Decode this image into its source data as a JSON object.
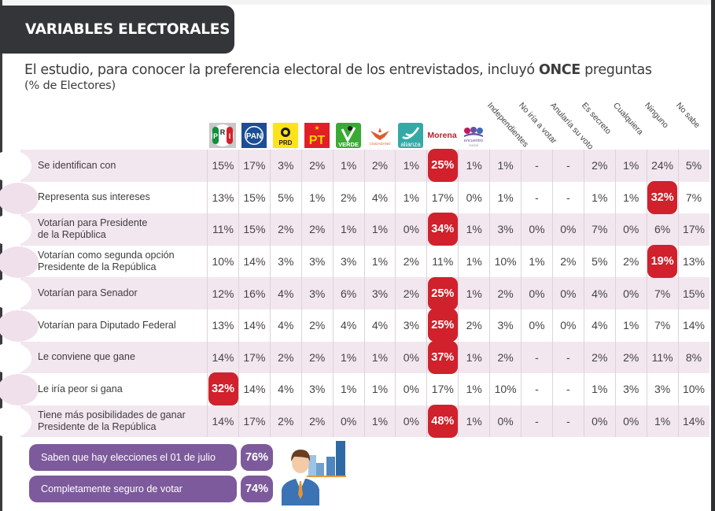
{
  "header": {
    "title": "VARIABLES ELECTORALES"
  },
  "intro": {
    "text_before": "El estudio, para conocer la preferencia electoral de los entrevistados, incluyó ",
    "text_bold": "ONCE",
    "text_after": " preguntas",
    "subtitle": "(% de Electores)"
  },
  "columns": [
    {
      "key": "pri",
      "type": "logo",
      "icon": "pri-logo-icon",
      "label": "PRI"
    },
    {
      "key": "pan",
      "type": "logo",
      "icon": "pan-logo-icon",
      "label": "PAN"
    },
    {
      "key": "prd",
      "type": "logo",
      "icon": "prd-logo-icon",
      "label": "PRD"
    },
    {
      "key": "pt",
      "type": "logo",
      "icon": "pt-logo-icon",
      "label": "PT"
    },
    {
      "key": "verde",
      "type": "logo",
      "icon": "verde-logo-icon",
      "label": "VERDE"
    },
    {
      "key": "mc",
      "type": "logo",
      "icon": "movimiento-ciudadano-logo-icon",
      "label": "CIUDADANO"
    },
    {
      "key": "alianza",
      "type": "logo",
      "icon": "nueva-alianza-logo-icon",
      "label": "alianza"
    },
    {
      "key": "morena",
      "type": "logo",
      "icon": "morena-logo-icon",
      "label": "Morena"
    },
    {
      "key": "pes",
      "type": "logo",
      "icon": "encuentro-social-logo-icon",
      "label": "encuentro social"
    },
    {
      "key": "independientes",
      "type": "text",
      "label": "Independientes"
    },
    {
      "key": "no_iria",
      "type": "text",
      "label": "No iría a votar"
    },
    {
      "key": "anularia",
      "type": "text",
      "label": "Anularía su voto"
    },
    {
      "key": "secreto",
      "type": "text",
      "label": "Es secreto"
    },
    {
      "key": "cualquiera",
      "type": "text",
      "label": "Cualquiera"
    },
    {
      "key": "ninguno",
      "type": "text",
      "label": "Ninguno"
    },
    {
      "key": "no_sabe",
      "type": "text",
      "label": "No sabe"
    }
  ],
  "rows": [
    {
      "label": "Se identifican con",
      "values": [
        "15%",
        "17%",
        "3%",
        "2%",
        "1%",
        "2%",
        "1%",
        "25%",
        "1%",
        "1%",
        "-",
        "-",
        "2%",
        "1%",
        "24%",
        "5%"
      ],
      "highlight": [
        7
      ]
    },
    {
      "label": "Representa sus intereses",
      "values": [
        "13%",
        "15%",
        "5%",
        "1%",
        "2%",
        "4%",
        "1%",
        "17%",
        "0%",
        "1%",
        "-",
        "-",
        "1%",
        "1%",
        "32%",
        "7%"
      ],
      "highlight": [
        14
      ]
    },
    {
      "label": "Votarían para Presidente\nde la República",
      "values": [
        "11%",
        "15%",
        "2%",
        "2%",
        "1%",
        "1%",
        "0%",
        "34%",
        "1%",
        "3%",
        "0%",
        "0%",
        "7%",
        "0%",
        "6%",
        "17%"
      ],
      "highlight": [
        7
      ]
    },
    {
      "label": "Votarían como segunda opción\nPresidente de la República",
      "values": [
        "10%",
        "14%",
        "3%",
        "3%",
        "3%",
        "1%",
        "2%",
        "11%",
        "1%",
        "10%",
        "1%",
        "2%",
        "5%",
        "2%",
        "19%",
        "13%"
      ],
      "highlight": [
        14
      ]
    },
    {
      "label": "Votarían para Senador",
      "values": [
        "12%",
        "16%",
        "4%",
        "3%",
        "6%",
        "3%",
        "2%",
        "25%",
        "1%",
        "2%",
        "0%",
        "0%",
        "4%",
        "0%",
        "7%",
        "15%"
      ],
      "highlight": [
        7
      ]
    },
    {
      "label": "Votarían para Diputado Federal",
      "values": [
        "13%",
        "14%",
        "4%",
        "2%",
        "4%",
        "4%",
        "3%",
        "25%",
        "2%",
        "3%",
        "0%",
        "0%",
        "4%",
        "1%",
        "7%",
        "14%"
      ],
      "highlight": [
        7
      ]
    },
    {
      "label": "Le conviene que gane",
      "values": [
        "14%",
        "17%",
        "2%",
        "2%",
        "1%",
        "1%",
        "0%",
        "37%",
        "1%",
        "2%",
        "-",
        "-",
        "2%",
        "2%",
        "11%",
        "8%"
      ],
      "highlight": [
        7
      ]
    },
    {
      "label": "Le iría peor si gana",
      "values": [
        "32%",
        "14%",
        "4%",
        "3%",
        "1%",
        "1%",
        "0%",
        "17%",
        "1%",
        "10%",
        "-",
        "-",
        "1%",
        "3%",
        "3%",
        "10%"
      ],
      "highlight": [
        0
      ]
    },
    {
      "label": "Tiene más posibilidades de ganar\nPresidente de la República",
      "values": [
        "14%",
        "17%",
        "2%",
        "2%",
        "0%",
        "1%",
        "0%",
        "48%",
        "1%",
        "0%",
        "-",
        "-",
        "0%",
        "0%",
        "1%",
        "14%"
      ],
      "highlight": [
        7
      ]
    }
  ],
  "summary": [
    {
      "label": "Saben que hay elecciones el 01 de julio",
      "value": "76%"
    },
    {
      "label": "Completamente seguro de votar",
      "value": "74%"
    }
  ],
  "colors": {
    "header_bg": "#333538",
    "row_pink": "#f2e6ef",
    "highlight": "#d0212c",
    "pill": "#7d5a9b"
  }
}
